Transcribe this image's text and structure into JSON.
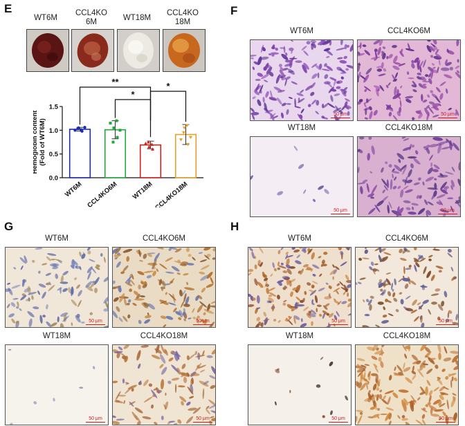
{
  "panel_letters": {
    "e": "E",
    "f": "F",
    "g": "G",
    "h": "H"
  },
  "panel_e": {
    "tissue_labels": [
      {
        "lines": [
          "WT6M"
        ]
      },
      {
        "lines": [
          "CCL4KO",
          "6M"
        ]
      },
      {
        "lines": [
          "WT18M"
        ]
      },
      {
        "lines": [
          "CCL4KO",
          "18M"
        ]
      }
    ]
  },
  "chart_data": {
    "type": "bar",
    "categories": [
      "WT6M",
      "CCL4KO6M",
      "WT18M",
      "CCL4KO18M"
    ],
    "values": [
      1.02,
      1.01,
      0.69,
      0.91
    ],
    "errors": [
      0.04,
      0.19,
      0.08,
      0.21
    ],
    "points": [
      [
        1.0,
        1.05,
        0.98,
        1.03,
        1.01,
        1.06
      ],
      [
        1.15,
        1.05,
        0.85,
        0.75,
        1.2,
        1.0
      ],
      [
        0.72,
        0.65,
        0.6,
        0.75,
        0.7
      ],
      [
        0.8,
        1.05,
        0.7,
        0.95,
        1.1,
        0.85
      ]
    ],
    "colors": [
      "#1f2bb0",
      "#22a83a",
      "#d0211c",
      "#e3a12a"
    ],
    "ylabel_lines": [
      "Hemoglobin content",
      "(Fold of WT6M)"
    ],
    "ylim": [
      0,
      1.5
    ],
    "yticks": [
      "0.0",
      "0.5",
      "1.0",
      "1.5"
    ],
    "significance": [
      {
        "from": 0,
        "to": 2,
        "label": "**"
      },
      {
        "from": 1,
        "to": 2,
        "label": "*"
      },
      {
        "from": 2,
        "to": 3,
        "label": "*"
      }
    ]
  },
  "panel_f": {
    "labels": [
      "WT6M",
      "CCL4KO6M",
      "WT18M",
      "CCL4KO18M"
    ],
    "scale": "50 μm"
  },
  "panel_g": {
    "labels": [
      "WT6M",
      "CCL4KO6M",
      "WT18M",
      "CCL4KO18M"
    ],
    "scale": "50 μm"
  },
  "panel_h": {
    "labels": [
      "WT6M",
      "CCL4KO6M",
      "WT18M",
      "CCL4KO18M"
    ],
    "scale": "50 μm"
  }
}
